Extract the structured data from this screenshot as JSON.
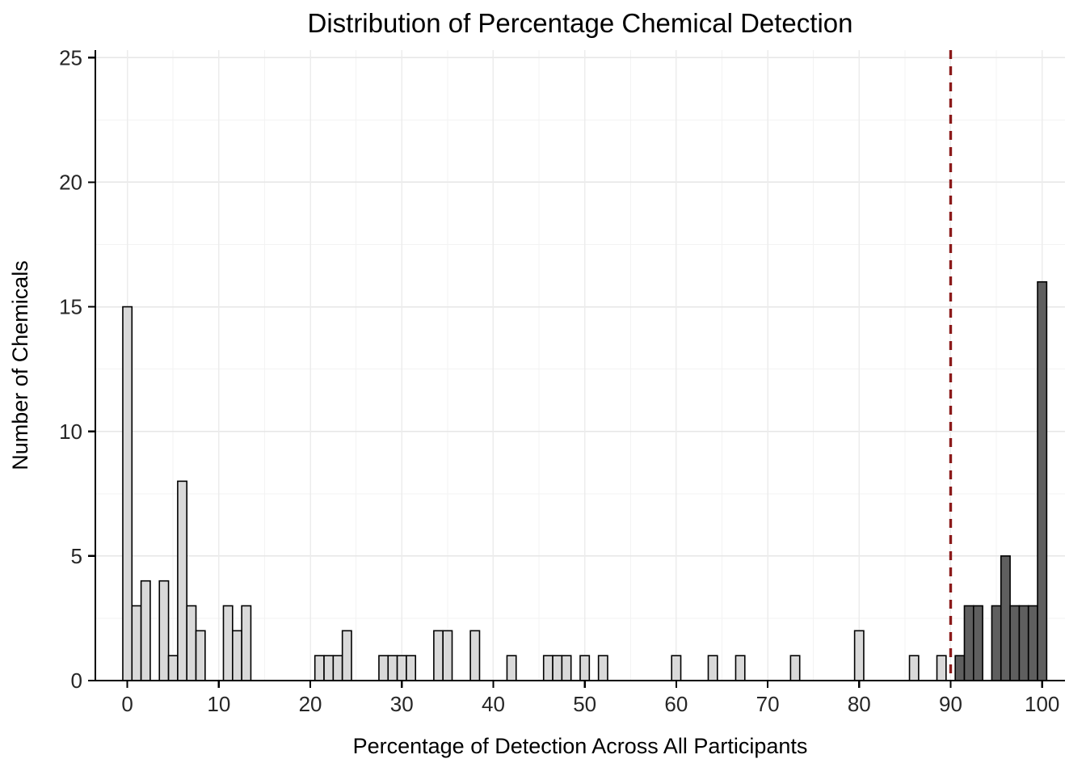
{
  "chart_data": {
    "type": "bar",
    "subtype": "histogram",
    "title": "Distribution of Percentage Chemical Detection",
    "xlabel": "Percentage of Detection Across All Participants",
    "ylabel": "Number of Chemicals",
    "xdomain": [
      -3.5,
      102.5
    ],
    "ydomain": [
      0,
      25.3
    ],
    "xticks": [
      0,
      10,
      20,
      30,
      40,
      50,
      60,
      70,
      80,
      90,
      100
    ],
    "yticks": [
      0,
      5,
      10,
      15,
      20,
      25
    ],
    "binwidth": 1,
    "grid": true,
    "legend": "none",
    "bar_fill_light": "#d9d9d9",
    "bar_fill_dark": "#5f5f5f",
    "bar_stroke": "#000000",
    "threshold": {
      "x": 90,
      "color": "#8B1A1A",
      "style": "dashed"
    },
    "bins": [
      {
        "x": 0,
        "n": 15,
        "g": "light"
      },
      {
        "x": 1,
        "n": 3,
        "g": "light"
      },
      {
        "x": 2,
        "n": 4,
        "g": "light"
      },
      {
        "x": 4,
        "n": 4,
        "g": "light"
      },
      {
        "x": 5,
        "n": 1,
        "g": "light"
      },
      {
        "x": 6,
        "n": 8,
        "g": "light"
      },
      {
        "x": 7,
        "n": 3,
        "g": "light"
      },
      {
        "x": 8,
        "n": 2,
        "g": "light"
      },
      {
        "x": 11,
        "n": 3,
        "g": "light"
      },
      {
        "x": 12,
        "n": 2,
        "g": "light"
      },
      {
        "x": 13,
        "n": 3,
        "g": "light"
      },
      {
        "x": 21,
        "n": 1,
        "g": "light"
      },
      {
        "x": 22,
        "n": 1,
        "g": "light"
      },
      {
        "x": 23,
        "n": 1,
        "g": "light"
      },
      {
        "x": 24,
        "n": 2,
        "g": "light"
      },
      {
        "x": 28,
        "n": 1,
        "g": "light"
      },
      {
        "x": 29,
        "n": 1,
        "g": "light"
      },
      {
        "x": 30,
        "n": 1,
        "g": "light"
      },
      {
        "x": 31,
        "n": 1,
        "g": "light"
      },
      {
        "x": 34,
        "n": 2,
        "g": "light"
      },
      {
        "x": 35,
        "n": 2,
        "g": "light"
      },
      {
        "x": 38,
        "n": 2,
        "g": "light"
      },
      {
        "x": 42,
        "n": 1,
        "g": "light"
      },
      {
        "x": 46,
        "n": 1,
        "g": "light"
      },
      {
        "x": 47,
        "n": 1,
        "g": "light"
      },
      {
        "x": 48,
        "n": 1,
        "g": "light"
      },
      {
        "x": 50,
        "n": 1,
        "g": "light"
      },
      {
        "x": 52,
        "n": 1,
        "g": "light"
      },
      {
        "x": 60,
        "n": 1,
        "g": "light"
      },
      {
        "x": 64,
        "n": 1,
        "g": "light"
      },
      {
        "x": 67,
        "n": 1,
        "g": "light"
      },
      {
        "x": 73,
        "n": 1,
        "g": "light"
      },
      {
        "x": 80,
        "n": 2,
        "g": "light"
      },
      {
        "x": 86,
        "n": 1,
        "g": "light"
      },
      {
        "x": 89,
        "n": 1,
        "g": "light"
      },
      {
        "x": 91,
        "n": 1,
        "g": "dark"
      },
      {
        "x": 92,
        "n": 3,
        "g": "dark"
      },
      {
        "x": 93,
        "n": 3,
        "g": "dark"
      },
      {
        "x": 95,
        "n": 3,
        "g": "dark"
      },
      {
        "x": 96,
        "n": 5,
        "g": "dark"
      },
      {
        "x": 97,
        "n": 3,
        "g": "dark"
      },
      {
        "x": 98,
        "n": 3,
        "g": "dark"
      },
      {
        "x": 99,
        "n": 3,
        "g": "dark"
      },
      {
        "x": 100,
        "n": 16,
        "g": "dark"
      }
    ]
  }
}
